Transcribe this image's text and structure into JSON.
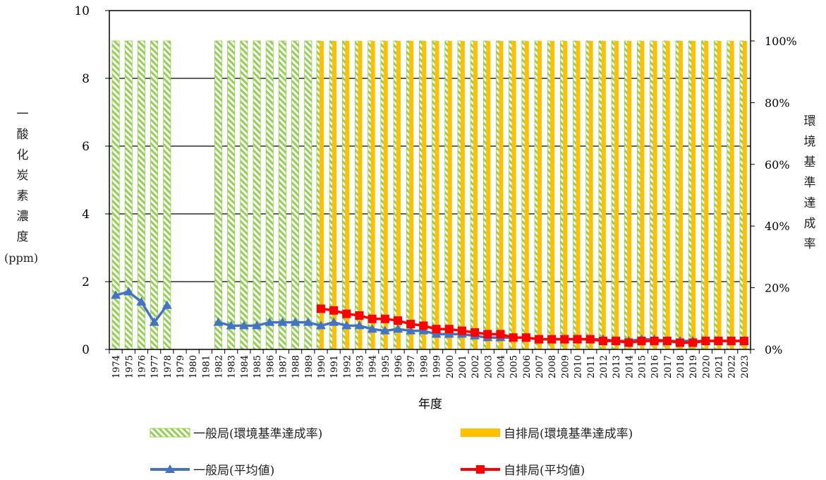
{
  "chart_data": {
    "type": "bar+line",
    "xlabel": "年度",
    "ylabel_left_chars": [
      "一",
      "酸",
      "化",
      "炭",
      "素",
      "濃",
      "度"
    ],
    "ylabel_left_unit": "(ppm)",
    "ylabel_right_chars": [
      "環",
      "境",
      "基",
      "準",
      "達",
      "成",
      "率"
    ],
    "ylim_left": [
      0,
      10
    ],
    "ylim_right": [
      0,
      1
    ],
    "left_ticks": [
      "0",
      "2",
      "4",
      "6",
      "8",
      "10"
    ],
    "right_ticks": [
      "0%",
      "20%",
      "40%",
      "60%",
      "80%",
      "100%"
    ],
    "grid": true,
    "categories": [
      "1974",
      "1975",
      "1976",
      "1977",
      "1978",
      "1979",
      "1980",
      "1981",
      "1982",
      "1983",
      "1984",
      "1985",
      "1986",
      "1987",
      "1988",
      "1989",
      "1990",
      "1991",
      "1992",
      "1993",
      "1994",
      "1995",
      "1996",
      "1997",
      "1998",
      "1999",
      "2000",
      "2001",
      "2002",
      "2003",
      "2004",
      "2005",
      "2006",
      "2007",
      "2008",
      "2009",
      "2010",
      "2011",
      "2012",
      "2013",
      "2014",
      "2015",
      "2016",
      "2017",
      "2018",
      "2019",
      "2020",
      "2021",
      "2022",
      "2023"
    ],
    "series": [
      {
        "name": "一般局(環境基準達成率)",
        "kind": "bar",
        "axis": "right",
        "pattern": "hatched-green",
        "values": [
          1,
          1,
          1,
          1,
          1,
          null,
          null,
          null,
          1,
          1,
          1,
          1,
          1,
          1,
          1,
          1,
          1,
          1,
          1,
          1,
          1,
          1,
          1,
          1,
          1,
          1,
          1,
          1,
          1,
          1,
          1,
          1,
          1,
          1,
          1,
          1,
          1,
          1,
          1,
          1,
          1,
          1,
          1,
          1,
          1,
          1,
          1,
          1,
          1,
          1
        ]
      },
      {
        "name": "自排局(環境基準達成率)",
        "kind": "bar",
        "axis": "right",
        "pattern": "solid-gold",
        "values": [
          null,
          null,
          null,
          null,
          null,
          null,
          null,
          null,
          null,
          null,
          null,
          null,
          null,
          null,
          null,
          null,
          1,
          1,
          1,
          1,
          1,
          1,
          1,
          1,
          1,
          1,
          1,
          1,
          1,
          1,
          1,
          1,
          1,
          1,
          1,
          1,
          1,
          1,
          1,
          1,
          1,
          1,
          1,
          1,
          1,
          1,
          1,
          1,
          1,
          1
        ]
      },
      {
        "name": "一般局(平均値)",
        "kind": "line",
        "axis": "left",
        "marker": "triangle",
        "color": "#4472c4",
        "values": [
          1.6,
          1.7,
          1.4,
          0.8,
          1.3,
          null,
          null,
          null,
          0.8,
          0.7,
          0.7,
          0.7,
          0.8,
          0.8,
          0.8,
          0.8,
          0.7,
          0.8,
          0.7,
          0.7,
          0.6,
          0.55,
          0.6,
          0.55,
          0.55,
          0.45,
          0.45,
          0.45,
          0.4,
          0.35,
          0.35,
          0.35,
          0.35,
          0.3,
          0.3,
          0.3,
          0.3,
          0.3,
          0.3,
          0.25,
          0.25,
          0.3,
          0.3,
          0.25,
          0.25,
          0.25,
          0.25,
          0.25,
          0.25,
          0.25
        ]
      },
      {
        "name": "自排局(平均値)",
        "kind": "line",
        "axis": "left",
        "marker": "square",
        "color": "#ff0000",
        "values": [
          null,
          null,
          null,
          null,
          null,
          null,
          null,
          null,
          null,
          null,
          null,
          null,
          null,
          null,
          null,
          null,
          1.2,
          1.15,
          1.05,
          1.0,
          0.9,
          0.9,
          0.85,
          0.75,
          0.7,
          0.6,
          0.6,
          0.55,
          0.5,
          0.45,
          0.45,
          0.35,
          0.35,
          0.3,
          0.3,
          0.3,
          0.3,
          0.3,
          0.25,
          0.25,
          0.2,
          0.25,
          0.25,
          0.25,
          0.2,
          0.2,
          0.25,
          0.25,
          0.25,
          0.25
        ]
      }
    ]
  },
  "legend": [
    {
      "label": "一般局(環境基準達成率)"
    },
    {
      "label": "自排局(環境基準達成率)"
    },
    {
      "label": "一般局(平均値)"
    },
    {
      "label": "自排局(平均値)"
    }
  ],
  "colors": {
    "green_hatch": "#92d050",
    "gold_bar": "#ffc000",
    "blue_line": "#4472c4",
    "red_line": "#ff0000"
  }
}
